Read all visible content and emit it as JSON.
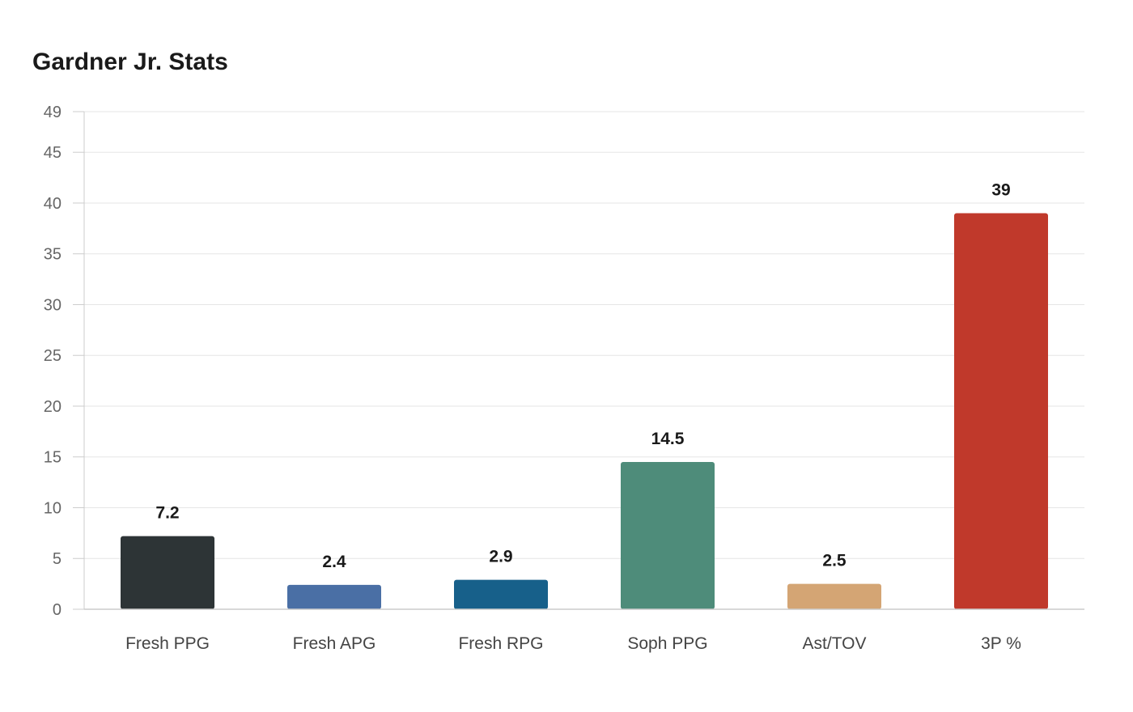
{
  "chart_data": {
    "type": "bar",
    "title": "Gardner Jr. Stats",
    "xlabel": "",
    "ylabel": "",
    "categories": [
      "Fresh PPG",
      "Fresh APG",
      "Fresh RPG",
      "Soph PPG",
      "Ast/TOV",
      "3P %"
    ],
    "values": [
      7.2,
      2.4,
      2.9,
      14.5,
      2.5,
      39
    ],
    "value_labels": [
      "7.2",
      "2.4",
      "2.9",
      "14.5",
      "2.5",
      "39"
    ],
    "colors": [
      "#2d3436",
      "#4a6fa5",
      "#17608a",
      "#4e8c7a",
      "#d4a574",
      "#c0392b"
    ],
    "ylim": [
      0,
      49
    ],
    "yticks": [
      0,
      5,
      10,
      15,
      20,
      25,
      30,
      35,
      40,
      45,
      49
    ],
    "grid": true,
    "legend": "none"
  }
}
